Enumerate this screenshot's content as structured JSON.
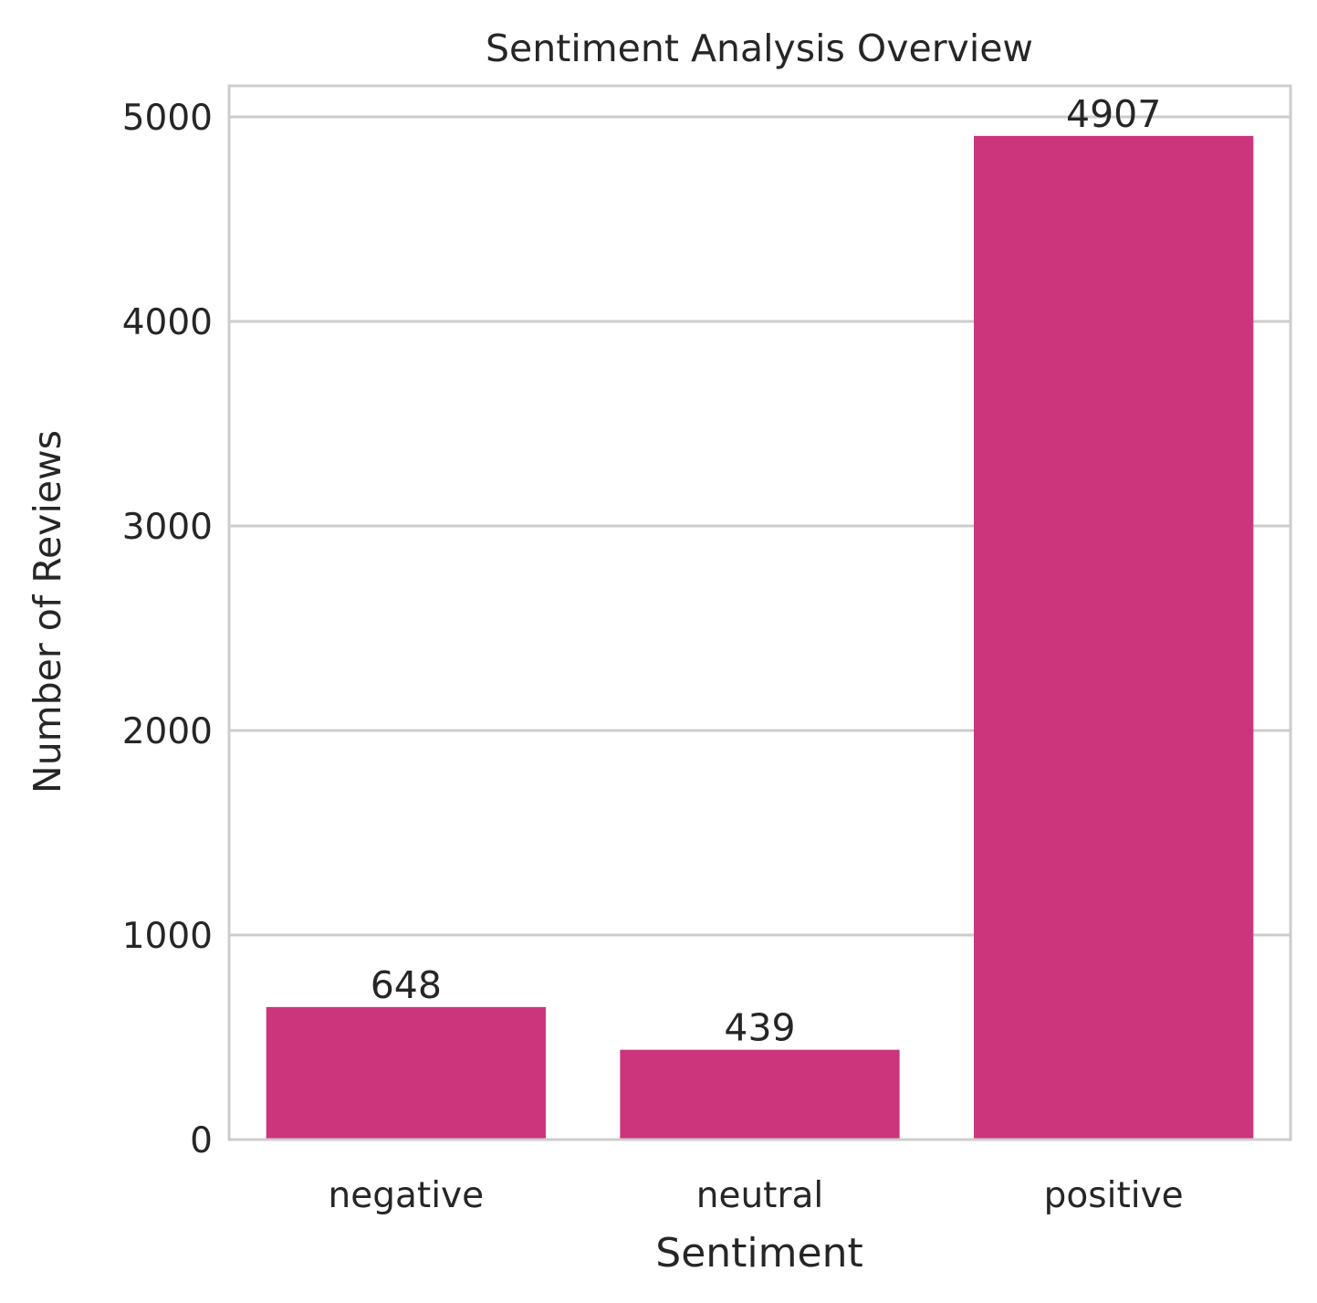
{
  "chart_data": {
    "type": "bar",
    "title": "Sentiment Analysis Overview",
    "xlabel": "Sentiment",
    "ylabel": "Number of Reviews",
    "categories": [
      "negative",
      "neutral",
      "positive"
    ],
    "values": [
      648,
      439,
      4907
    ],
    "data_labels": [
      "648",
      "439",
      "4907"
    ],
    "y_ticks": [
      0,
      1000,
      2000,
      3000,
      4000,
      5000
    ],
    "y_tick_labels": [
      "0",
      "1000",
      "2000",
      "3000",
      "4000",
      "5000"
    ],
    "ylim": [
      0,
      5152
    ],
    "grid": true,
    "grid_axis": "y",
    "legend": false,
    "colors": {
      "bar": "#cc347b",
      "grid": "#cccccc",
      "frame": "#cccccc",
      "text": "#262626"
    }
  }
}
